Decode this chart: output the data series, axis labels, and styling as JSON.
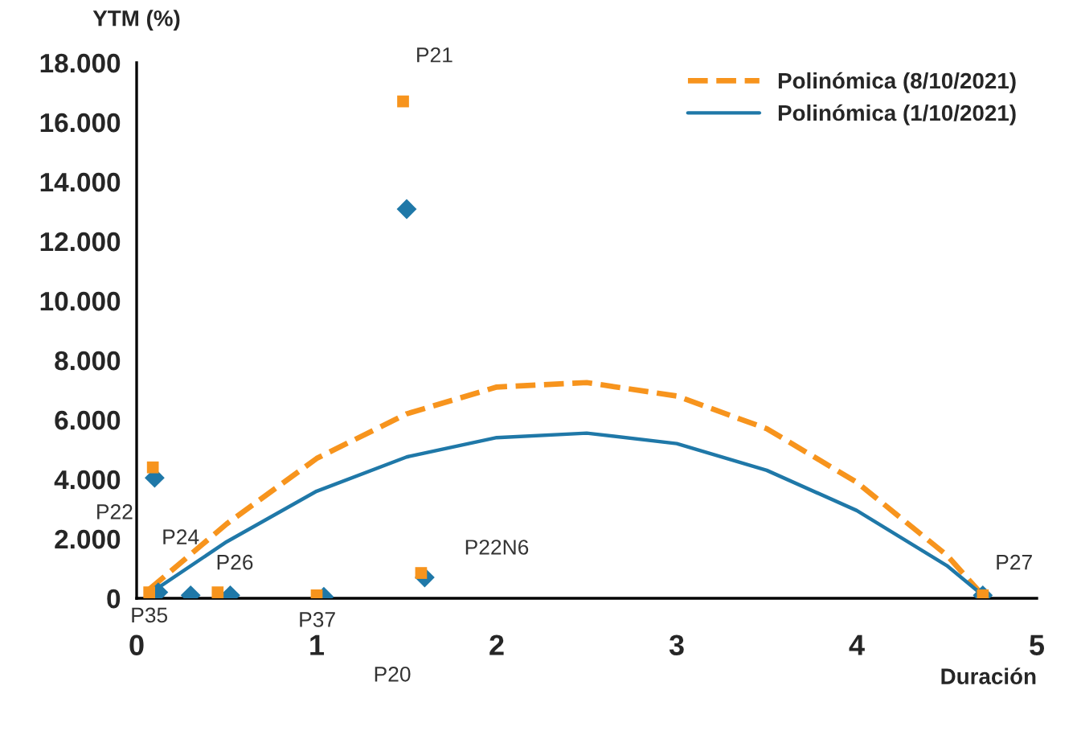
{
  "chart_data": {
    "type": "scatter",
    "xlabel": "Duración",
    "ylabel": "YTM (%)",
    "xlim": [
      0,
      5
    ],
    "xticks": [
      0,
      1,
      2,
      3,
      4,
      5
    ],
    "ylim": [
      0,
      18000
    ],
    "yticks": [
      0,
      {
        "value": 2000,
        "label": "2.000"
      },
      {
        "value": 4000,
        "label": "4.000"
      },
      {
        "value": 6000,
        "label": "6.000"
      },
      {
        "value": 8000,
        "label": "8.000"
      },
      {
        "value": 10000,
        "label": "10.000"
      },
      {
        "value": 12000,
        "label": "12.000"
      },
      {
        "value": 14000,
        "label": "14.000"
      },
      {
        "value": 16000,
        "label": "16.000"
      },
      {
        "value": 18000,
        "label": "18.000"
      }
    ],
    "grid": false,
    "legend": "top right",
    "series": [
      {
        "color": "#f7941d",
        "marker": "square",
        "x": [
          0.09,
          0.07,
          0.45,
          1.0,
          1.58,
          1.48,
          4.7
        ],
        "values": [
          4400,
          200,
          200,
          100,
          850,
          16700,
          100
        ]
      },
      {
        "color": "#1f78a8",
        "marker": "diamond",
        "x": [
          0.1,
          0.12,
          0.3,
          0.52,
          1.04,
          1.6,
          1.5,
          4.7
        ],
        "values": [
          4050,
          200,
          100,
          100,
          50,
          700,
          13080,
          100
        ]
      },
      {
        "type": "line",
        "name": "Polinómica (8/10/2021)",
        "color": "#f7941d",
        "line_style": "dashed",
        "x": [
          0.07,
          0.5,
          1.0,
          1.5,
          2.0,
          2.5,
          3.0,
          3.5,
          4.0,
          4.5,
          4.7
        ],
        "values": [
          300,
          2500,
          4700,
          6200,
          7100,
          7250,
          6800,
          5700,
          3900,
          1450,
          100
        ]
      },
      {
        "type": "line",
        "name": "Polinómica (1/10/2021)",
        "color": "#1f78a8",
        "line_style": "solid",
        "x": [
          0.07,
          0.5,
          1.0,
          1.5,
          2.0,
          2.5,
          3.0,
          3.5,
          4.0,
          4.5,
          4.7
        ],
        "values": [
          150,
          1900,
          3600,
          4750,
          5400,
          5550,
          5200,
          4300,
          2950,
          1100,
          100
        ]
      }
    ],
    "annotations": [
      {
        "text": "P21",
        "x": 1.48,
        "y": 16700
      },
      {
        "text": "P22",
        "x": 0.1,
        "y": 4050
      },
      {
        "text": "P24",
        "x": 0.12,
        "y": 200
      },
      {
        "text": "P26",
        "x": 0.52,
        "y": 100
      },
      "P22N6",
      {
        "text": "P27",
        "x": 4.7,
        "y": 100
      },
      {
        "text": "P35",
        "x": 0.07,
        "y": 200
      },
      {
        "text": "P37",
        "x": 1.04,
        "y": 50
      },
      "P20"
    ]
  }
}
